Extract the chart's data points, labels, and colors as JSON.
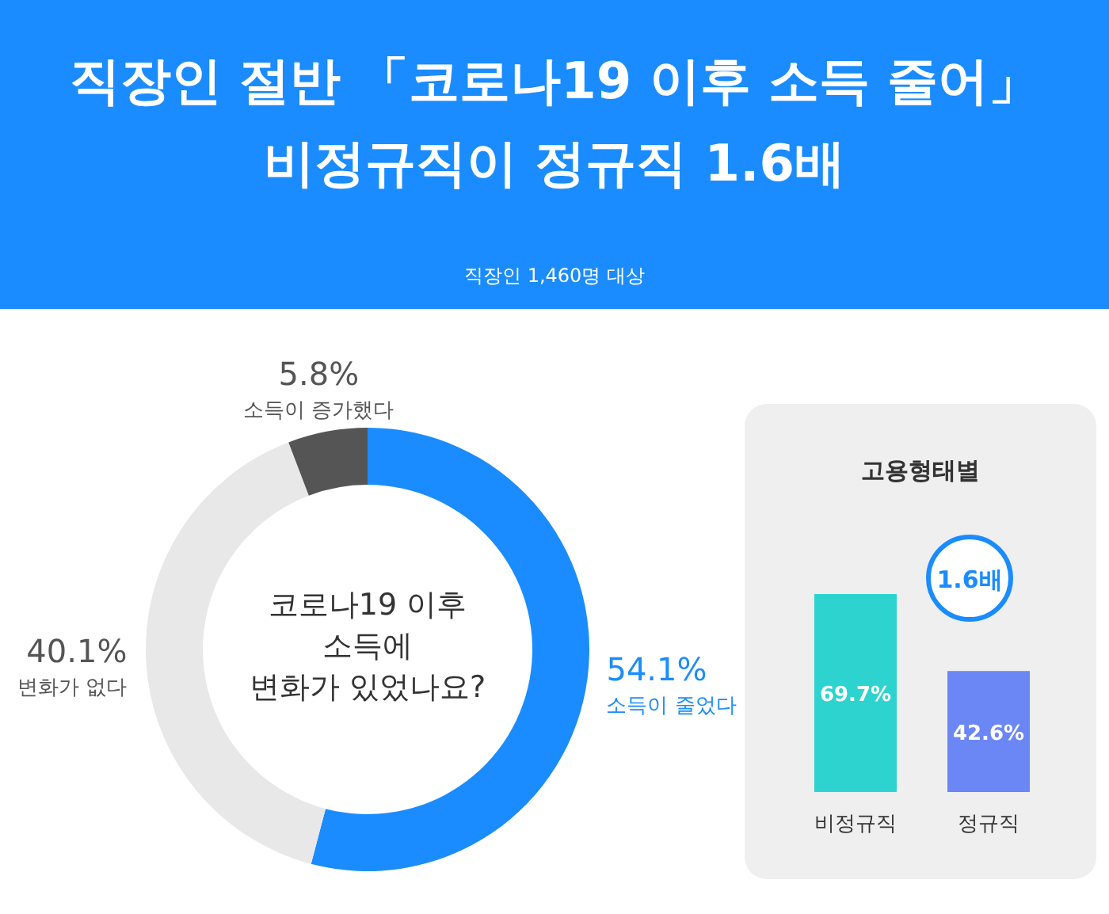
{
  "chart_data": [
    {
      "type": "donut",
      "title": "직장인 절반 「코로나19 이후 소득 줄어」\n비정규직이 정규직 1.6배",
      "subtitle": "직장인 1,460명 대상",
      "categories": [
        "소득이 줄었다",
        "변화가 없다",
        "소득이 증가했다"
      ],
      "values": [
        54.1,
        40.1,
        5.8
      ],
      "colors": [
        "#1a8cff",
        "#e8e8e8",
        "#555555"
      ],
      "value_labels": [
        "54.1%",
        "40.1%",
        "5.8%"
      ],
      "annotations": [
        "코로나19 이후\n소득에\n변화가 있었나요?"
      ]
    },
    {
      "type": "bar",
      "title": "고용형태별",
      "categories": [
        "비정규직",
        "정규직"
      ],
      "values": [
        69.7,
        42.6
      ],
      "colors": [
        "#2dd4cf",
        "#6b86f5"
      ],
      "value_labels": [
        "69.7%",
        "42.6%"
      ],
      "annotations": [
        "1.6배"
      ]
    }
  ]
}
